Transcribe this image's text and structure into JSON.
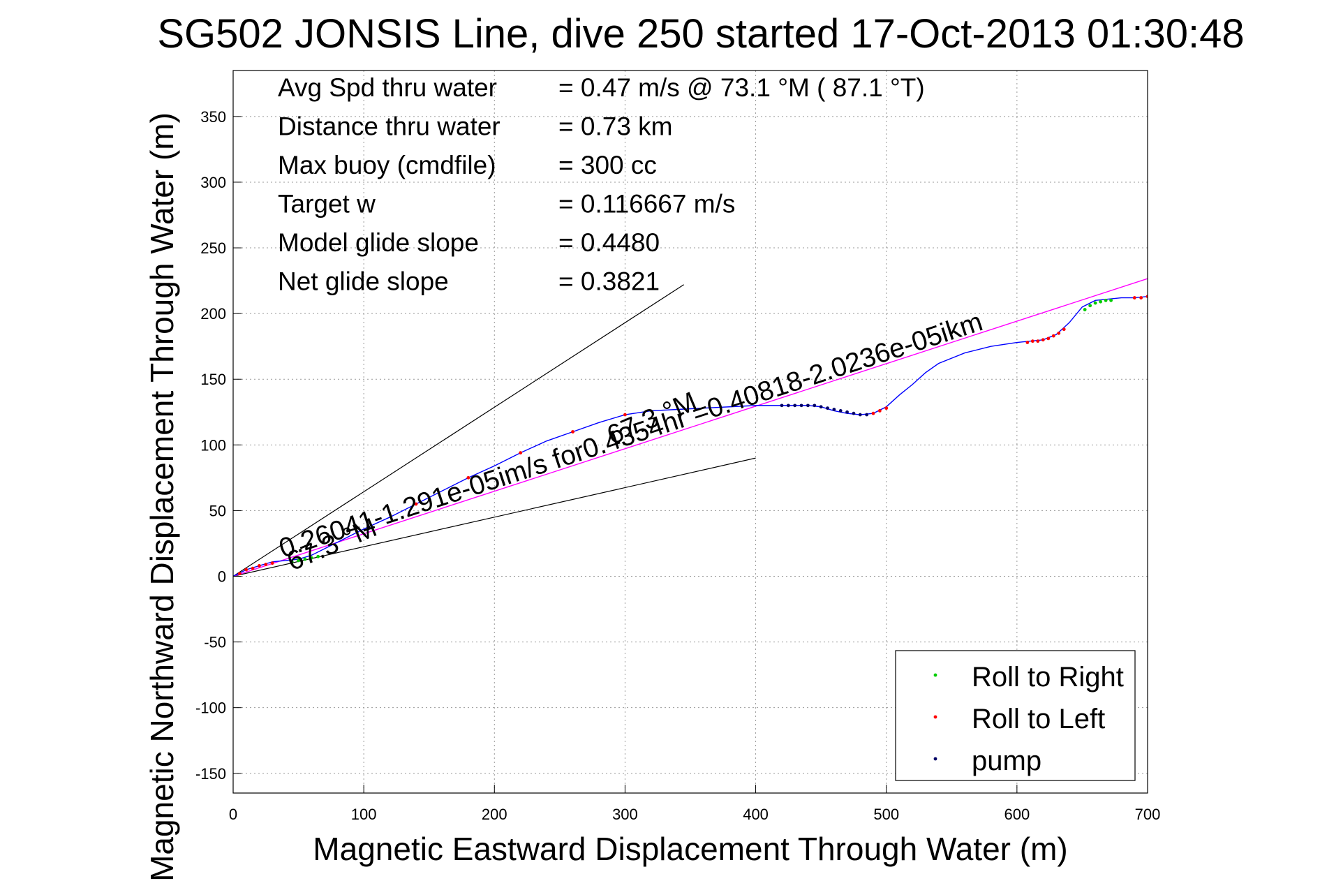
{
  "chart_data": {
    "type": "line",
    "title": "SG502 JONSIS Line, dive 250 started 17-Oct-2013 01:30:48",
    "xlabel": "Magnetic Eastward Displacement Through Water (m)",
    "ylabel": "Magnetic Northward Displacement Through Water (m)",
    "xlim": [
      0,
      700
    ],
    "ylim": [
      -165,
      385
    ],
    "x_ticks": [
      0,
      100,
      200,
      300,
      400,
      500,
      600,
      700
    ],
    "y_ticks": [
      -150,
      -100,
      -50,
      0,
      50,
      100,
      150,
      200,
      250,
      300,
      350
    ],
    "grid": true,
    "legend_position": "bottom-right",
    "stats": [
      {
        "label": "Avg Spd thru water",
        "value": "=  0.47 m/s @  73.1 °M ( 87.1 °T)"
      },
      {
        "label": "Distance thru water",
        "value": "=  0.73 km"
      },
      {
        "label": "Max buoy (cmdfile)",
        "value": "= 300 cc"
      },
      {
        "label": "Target w",
        "value": "= 0.116667 m/s"
      },
      {
        "label": "Model glide slope",
        "value": "= 0.4480"
      },
      {
        "label": "Net glide slope",
        "value": "= 0.3821"
      }
    ],
    "track": {
      "x": [
        0,
        10,
        20,
        30,
        40,
        50,
        60,
        70,
        80,
        90,
        100,
        120,
        140,
        160,
        180,
        200,
        220,
        240,
        260,
        280,
        300,
        320,
        340,
        360,
        380,
        400,
        420,
        440,
        450,
        460,
        470,
        480,
        490,
        500,
        510,
        520,
        530,
        540,
        560,
        580,
        600,
        620,
        630,
        640,
        650,
        660,
        670,
        680,
        690,
        700
      ],
      "y": [
        0,
        5,
        8,
        11,
        12,
        13,
        16,
        21,
        26,
        31,
        36,
        45,
        55,
        65,
        75,
        84,
        94,
        103,
        110,
        117,
        123,
        126,
        127,
        128,
        129,
        130,
        130,
        130,
        129,
        126,
        124,
        123,
        124,
        129,
        138,
        146,
        155,
        162,
        170,
        175,
        178,
        180,
        184,
        193,
        205,
        210,
        211,
        212,
        212,
        213
      ]
    },
    "annotation_lines": [
      {
        "x": [
          0,
          345
        ],
        "y": [
          0,
          222
        ]
      },
      {
        "x": [
          0,
          400
        ],
        "y": [
          0,
          90
        ]
      },
      {
        "x": [
          0,
          760
        ],
        "y": [
          0,
          246
        ]
      }
    ],
    "series": [
      {
        "name": "Roll to Right",
        "color": "#00cc00",
        "x": [
          45,
          50,
          55,
          60,
          65,
          652,
          656,
          660,
          664,
          668,
          672
        ],
        "y": [
          11,
          12,
          13,
          14,
          15,
          203,
          206,
          208,
          209,
          210,
          210
        ]
      },
      {
        "name": "Roll to Left",
        "color": "#ff0000",
        "x": [
          5,
          10,
          15,
          20,
          25,
          30,
          140,
          180,
          220,
          260,
          300,
          490,
          495,
          500,
          608,
          612,
          616,
          620,
          624,
          628,
          632,
          636,
          690,
          695,
          700
        ],
        "y": [
          2,
          5,
          6,
          8,
          9,
          10,
          55,
          75,
          94,
          110,
          123,
          124,
          126,
          128,
          178,
          179,
          179,
          180,
          181,
          183,
          185,
          188,
          212,
          212,
          213
        ]
      },
      {
        "name": "pump",
        "color": "#000066",
        "x": [
          420,
          425,
          430,
          435,
          440,
          445,
          450,
          455,
          460,
          465,
          470,
          475,
          480,
          485
        ],
        "y": [
          130,
          130,
          130,
          130,
          130,
          130,
          129,
          128,
          127,
          126,
          125,
          124,
          123,
          123
        ]
      }
    ],
    "annotations": [
      {
        "text": "0.26041-1.291e-05im/s for0.4354hr =0.40818-2.0236e-05ikm",
        "x": 38,
        "y": 14,
        "angle_data": [
          1,
          0.324
        ]
      },
      {
        "text": "67.3 °M",
        "x": 45,
        "y": 4,
        "angle_data": [
          1,
          0.42
        ]
      },
      {
        "text": "67.3 °M",
        "x": 290,
        "y": 100,
        "angle_data": [
          1,
          0.42
        ]
      }
    ]
  }
}
